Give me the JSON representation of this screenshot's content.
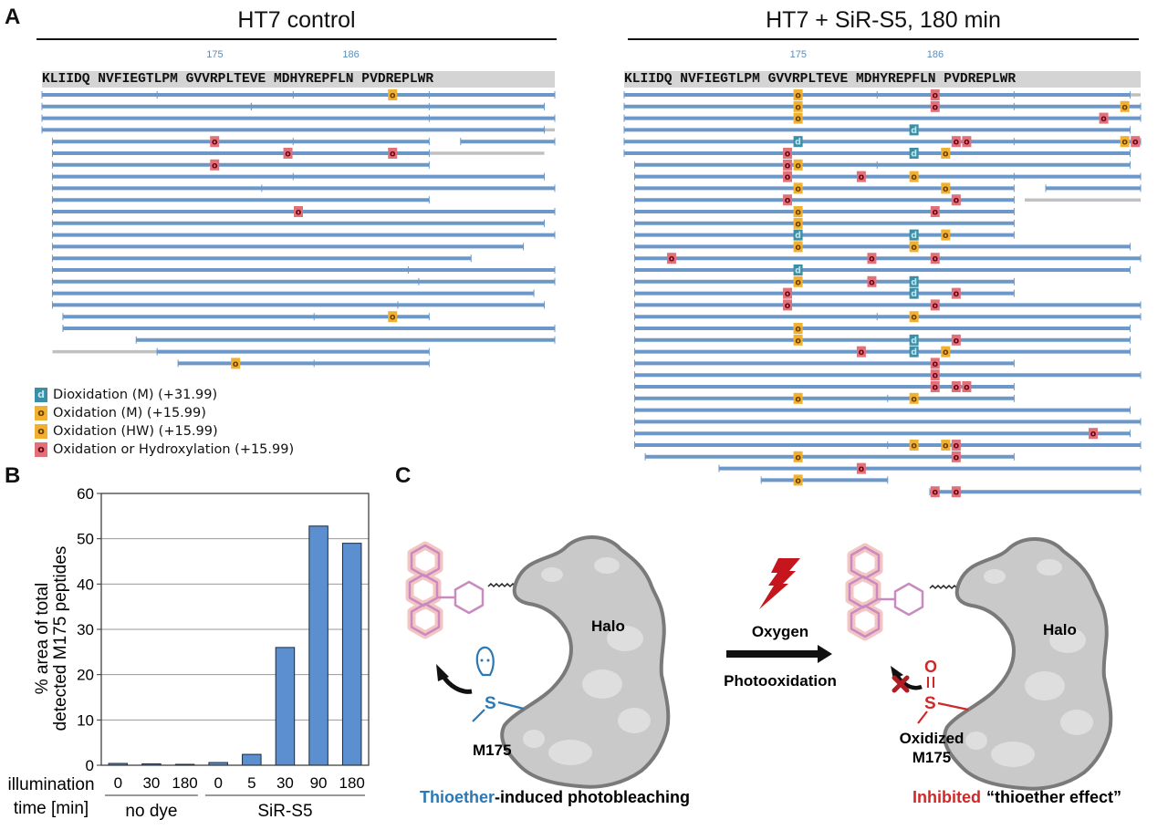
{
  "figure": {
    "panel_letters": {
      "a": "A",
      "b": "B",
      "c": "C"
    }
  },
  "sequence": {
    "text": "KLIIDQ NVFIEGTLPM GVVRPLTEVE MDHYREPFLN PVDREPLWR",
    "first_residue_number": 160,
    "position_labels": [
      {
        "residue": 175,
        "label": "175"
      },
      {
        "residue": 186,
        "label": "186"
      }
    ]
  },
  "colors": {
    "peptide": "#6b98c8",
    "unmatched": "#c0c0c0",
    "dioxidation_M": "#3a8ea6",
    "oxidation_M": "#f0b030",
    "oxidation_HW": "#f0b030",
    "oxidation_hydroxylation": "#e0707a",
    "bar_fill": "#5b8fcf",
    "thioether_blue": "#2a78b5",
    "inhibited_red": "#d02828",
    "dye_pink": "#d58ab8",
    "halo_gray": "#c8c8c8"
  },
  "legend": [
    {
      "type": "d",
      "color_key": "dioxidation_M",
      "label": "Dioxidation (M) (+31.99)"
    },
    {
      "type": "o",
      "color_key": "oxidation_M",
      "label": "Oxidation (M) (+15.99)"
    },
    {
      "type": "o",
      "color_key": "oxidation_HW",
      "label": "Oxidation (HW) (+15.99)"
    },
    {
      "type": "o",
      "color_key": "oxidation_hydroxylation",
      "label": "Oxidation or Hydroxylation (+15.99)"
    }
  ],
  "coverage_maps": [
    {
      "title": "HT7 control",
      "peptides": [
        {
          "start": 160,
          "end": 204,
          "ticks": [
            169,
            181,
            193
          ],
          "mods": [
            {
              "res": 190,
              "type": "o",
              "kind": "oxM"
            }
          ]
        },
        {
          "start": 160,
          "end": 177,
          "ticks": [],
          "mods": []
        },
        {
          "start": 178,
          "end": 203,
          "row": 1,
          "ticks": [
            193
          ],
          "mods": []
        },
        {
          "start": 160,
          "end": 204,
          "ticks": [
            193
          ],
          "mods": []
        },
        {
          "start": 160,
          "end": 203,
          "ticks": [],
          "grey": [
            203,
            204
          ],
          "mods": []
        },
        {
          "start": 161,
          "end": 193,
          "ticks": [
            181
          ],
          "mods": [
            {
              "res": 175,
              "type": "o",
              "kind": "oh"
            }
          ]
        },
        {
          "start": 196,
          "end": 204,
          "row": 4,
          "ticks": [],
          "mods": []
        },
        {
          "start": 161,
          "end": 193,
          "ticks": [],
          "grey": [
            193,
            203
          ],
          "mods": [
            {
              "res": 181,
              "type": "o",
              "kind": "oh"
            },
            {
              "res": 190,
              "type": "o",
              "kind": "oh"
            }
          ]
        },
        {
          "start": 161,
          "end": 193,
          "ticks": [],
          "mods": [
            {
              "res": 175,
              "type": "o",
              "kind": "oh"
            }
          ]
        },
        {
          "start": 161,
          "end": 203,
          "ticks": [
            181
          ],
          "mods": []
        },
        {
          "start": 161,
          "end": 204,
          "ticks": [
            178
          ],
          "mods": []
        },
        {
          "start": 161,
          "end": 193,
          "ticks": [],
          "mods": []
        },
        {
          "start": 161,
          "end": 204,
          "ticks": [],
          "mods": [
            {
              "res": 182,
              "type": "o",
              "kind": "oh"
            }
          ]
        },
        {
          "start": 161,
          "end": 203,
          "ticks": [],
          "mods": []
        },
        {
          "start": 161,
          "end": 204,
          "ticks": [],
          "mods": []
        },
        {
          "start": 161,
          "end": 201,
          "ticks": [],
          "mods": []
        },
        {
          "start": 161,
          "end": 196,
          "ticks": [],
          "mods": []
        },
        {
          "start": 161,
          "end": 204,
          "ticks": [
            191
          ],
          "mods": []
        },
        {
          "start": 161,
          "end": 204,
          "ticks": [
            192
          ],
          "mods": []
        },
        {
          "start": 161,
          "end": 202,
          "ticks": [],
          "mods": []
        },
        {
          "start": 161,
          "end": 203,
          "ticks": [
            190
          ],
          "mods": []
        },
        {
          "start": 162,
          "end": 193,
          "ticks": [
            183
          ],
          "mods": [
            {
              "res": 190,
              "type": "o",
              "kind": "oxM"
            }
          ]
        },
        {
          "start": 162,
          "end": 204,
          "ticks": [],
          "mods": []
        },
        {
          "start": 168,
          "end": 204,
          "ticks": [],
          "mods": []
        },
        {
          "start": 170,
          "end": 193,
          "ticks": [],
          "grey": [
            161,
            170
          ],
          "mods": []
        },
        {
          "start": 172,
          "end": 193,
          "ticks": [
            183
          ],
          "mods": [
            {
              "res": 176,
              "type": "o",
              "kind": "oxM"
            }
          ]
        }
      ]
    },
    {
      "title": "HT7 + SiR-S5, 180 min",
      "peptides": [
        {
          "start": 160,
          "end": 203,
          "ticks": [
            181,
            193
          ],
          "grey": [
            203,
            204
          ],
          "mods": [
            {
              "res": 175,
              "type": "o",
              "kind": "oxM"
            },
            {
              "res": 186,
              "type": "o",
              "kind": "oh"
            }
          ]
        },
        {
          "start": 160,
          "end": 204,
          "ticks": [
            193
          ],
          "mods": [
            {
              "res": 175,
              "type": "o",
              "kind": "oxM"
            },
            {
              "res": 186,
              "type": "o",
              "kind": "oh"
            },
            {
              "res": 203,
              "type": "o",
              "kind": "oxHW"
            }
          ]
        },
        {
          "start": 160,
          "end": 204,
          "ticks": [],
          "mods": [
            {
              "res": 175,
              "type": "o",
              "kind": "oxM"
            },
            {
              "res": 201,
              "type": "o",
              "kind": "oh"
            }
          ]
        },
        {
          "start": 160,
          "end": 203,
          "ticks": [],
          "mods": [
            {
              "res": 185,
              "type": "d",
              "kind": "diox"
            }
          ]
        },
        {
          "start": 160,
          "end": 204,
          "ticks": [
            193
          ],
          "mods": [
            {
              "res": 175,
              "type": "d",
              "kind": "diox"
            },
            {
              "res": 188,
              "type": "o",
              "kind": "oh"
            },
            {
              "res": 189,
              "type": "o",
              "kind": "oh"
            },
            {
              "res": 203,
              "type": "o",
              "kind": "oxHW"
            },
            {
              "res": 204,
              "type": "o",
              "kind": "oh"
            }
          ]
        },
        {
          "start": 160,
          "end": 203,
          "ticks": [],
          "mods": [
            {
              "res": 174,
              "type": "o",
              "kind": "oh"
            },
            {
              "res": 185,
              "type": "d",
              "kind": "diox"
            },
            {
              "res": 187,
              "type": "o",
              "kind": "oxM"
            }
          ]
        },
        {
          "start": 161,
          "end": 203,
          "ticks": [
            181
          ],
          "mods": [
            {
              "res": 174,
              "type": "o",
              "kind": "oh"
            },
            {
              "res": 175,
              "type": "o",
              "kind": "oxM"
            }
          ]
        },
        {
          "start": 161,
          "end": 204,
          "ticks": [
            193
          ],
          "mods": [
            {
              "res": 174,
              "type": "o",
              "kind": "oh"
            },
            {
              "res": 180,
              "type": "o",
              "kind": "oh"
            },
            {
              "res": 185,
              "type": "o",
              "kind": "oxM"
            }
          ]
        },
        {
          "start": 161,
          "end": 193,
          "ticks": [],
          "mods": [
            {
              "res": 175,
              "type": "o",
              "kind": "oxM"
            },
            {
              "res": 187,
              "type": "o",
              "kind": "oxM"
            }
          ]
        },
        {
          "start": 196,
          "end": 204,
          "row": 8,
          "ticks": [],
          "mods": []
        },
        {
          "start": 161,
          "end": 193,
          "ticks": [],
          "grey": [
            195,
            204
          ],
          "mods": [
            {
              "res": 174,
              "type": "o",
              "kind": "oh"
            },
            {
              "res": 188,
              "type": "o",
              "kind": "oh"
            }
          ]
        },
        {
          "start": 161,
          "end": 193,
          "ticks": [],
          "mods": [
            {
              "res": 175,
              "type": "o",
              "kind": "oxM"
            },
            {
              "res": 186,
              "type": "o",
              "kind": "oh"
            }
          ]
        },
        {
          "start": 161,
          "end": 193,
          "ticks": [],
          "mods": [
            {
              "res": 175,
              "type": "o",
              "kind": "oxM"
            }
          ]
        },
        {
          "start": 161,
          "end": 193,
          "ticks": [],
          "mods": [
            {
              "res": 175,
              "type": "d",
              "kind": "diox"
            },
            {
              "res": 185,
              "type": "d",
              "kind": "diox"
            },
            {
              "res": 187,
              "type": "o",
              "kind": "oxM"
            }
          ]
        },
        {
          "start": 161,
          "end": 203,
          "ticks": [],
          "mods": [
            {
              "res": 175,
              "type": "o",
              "kind": "oxM"
            },
            {
              "res": 185,
              "type": "o",
              "kind": "oxM"
            }
          ]
        },
        {
          "start": 161,
          "end": 204,
          "ticks": [],
          "mods": [
            {
              "res": 164,
              "type": "o",
              "kind": "oh"
            },
            {
              "res": 181,
              "type": "o",
              "kind": "oh"
            },
            {
              "res": 186,
              "type": "o",
              "kind": "oh"
            }
          ]
        },
        {
          "start": 161,
          "end": 203,
          "ticks": [],
          "mods": [
            {
              "res": 175,
              "type": "d",
              "kind": "diox"
            }
          ]
        },
        {
          "start": 161,
          "end": 193,
          "ticks": [],
          "mods": [
            {
              "res": 175,
              "type": "o",
              "kind": "oxM"
            },
            {
              "res": 181,
              "type": "o",
              "kind": "oh"
            },
            {
              "res": 185,
              "type": "d",
              "kind": "diox"
            }
          ]
        },
        {
          "start": 161,
          "end": 193,
          "ticks": [],
          "mods": [
            {
              "res": 174,
              "type": "o",
              "kind": "oh"
            },
            {
              "res": 185,
              "type": "d",
              "kind": "diox"
            },
            {
              "res": 188,
              "type": "o",
              "kind": "oh"
            }
          ]
        },
        {
          "start": 161,
          "end": 204,
          "ticks": [],
          "mods": [
            {
              "res": 174,
              "type": "o",
              "kind": "oh"
            },
            {
              "res": 186,
              "type": "o",
              "kind": "oh"
            }
          ]
        },
        {
          "start": 161,
          "end": 204,
          "ticks": [
            181
          ],
          "mods": [
            {
              "res": 185,
              "type": "o",
              "kind": "oxM"
            }
          ]
        },
        {
          "start": 161,
          "end": 203,
          "ticks": [],
          "mods": [
            {
              "res": 175,
              "type": "o",
              "kind": "oxM"
            }
          ]
        },
        {
          "start": 161,
          "end": 203,
          "ticks": [],
          "mods": [
            {
              "res": 175,
              "type": "o",
              "kind": "oxM"
            },
            {
              "res": 185,
              "type": "d",
              "kind": "diox"
            },
            {
              "res": 188,
              "type": "o",
              "kind": "oh"
            }
          ]
        },
        {
          "start": 161,
          "end": 203,
          "ticks": [],
          "mods": [
            {
              "res": 180,
              "type": "o",
              "kind": "oh"
            },
            {
              "res": 185,
              "type": "d",
              "kind": "diox"
            },
            {
              "res": 187,
              "type": "o",
              "kind": "oxM"
            }
          ]
        },
        {
          "start": 161,
          "end": 193,
          "ticks": [],
          "mods": [
            {
              "res": 186,
              "type": "o",
              "kind": "oh"
            }
          ]
        },
        {
          "start": 161,
          "end": 204,
          "ticks": [],
          "mods": [
            {
              "res": 186,
              "type": "o",
              "kind": "oh"
            }
          ]
        },
        {
          "start": 161,
          "end": 193,
          "ticks": [],
          "mods": [
            {
              "res": 186,
              "type": "o",
              "kind": "oh"
            },
            {
              "res": 188,
              "type": "o",
              "kind": "oh"
            },
            {
              "res": 189,
              "type": "o",
              "kind": "oh"
            }
          ]
        },
        {
          "start": 161,
          "end": 193,
          "ticks": [
            182
          ],
          "mods": [
            {
              "res": 175,
              "type": "o",
              "kind": "oxM"
            },
            {
              "res": 185,
              "type": "o",
              "kind": "oxM"
            }
          ]
        },
        {
          "start": 161,
          "end": 203,
          "ticks": [],
          "mods": []
        },
        {
          "start": 161,
          "end": 204,
          "ticks": [],
          "mods": []
        },
        {
          "start": 161,
          "end": 203,
          "ticks": [],
          "mods": [
            {
              "res": 200,
              "type": "o",
              "kind": "oh"
            }
          ]
        },
        {
          "start": 161,
          "end": 204,
          "ticks": [
            182
          ],
          "mods": [
            {
              "res": 185,
              "type": "o",
              "kind": "oxM"
            },
            {
              "res": 187,
              "type": "o",
              "kind": "oxM"
            },
            {
              "res": 188,
              "type": "o",
              "kind": "oh"
            }
          ]
        },
        {
          "start": 162,
          "end": 193,
          "ticks": [],
          "mods": [
            {
              "res": 175,
              "type": "o",
              "kind": "oxM"
            },
            {
              "res": 188,
              "type": "o",
              "kind": "oh"
            }
          ]
        },
        {
          "start": 168,
          "end": 204,
          "ticks": [],
          "mods": [
            {
              "res": 180,
              "type": "o",
              "kind": "oh"
            }
          ]
        },
        {
          "start": 172,
          "end": 182,
          "ticks": [],
          "mods": [
            {
              "res": 175,
              "type": "o",
              "kind": "oxM"
            }
          ]
        },
        {
          "start": 186,
          "end": 204,
          "row": 34,
          "ticks": [],
          "mods": [
            {
              "res": 186,
              "type": "o",
              "kind": "oh"
            },
            {
              "res": 188,
              "type": "o",
              "kind": "oh"
            }
          ]
        }
      ]
    }
  ],
  "chart_data": {
    "type": "bar",
    "title": "",
    "ylabel_lines": [
      "% area of total",
      "detected M175 peptides"
    ],
    "xlabel_lines": [
      "illumination",
      "time [min]"
    ],
    "categories": [
      "0",
      "30",
      "180",
      "0",
      "5",
      "30",
      "90",
      "180"
    ],
    "groups": [
      {
        "label": "no dye",
        "indices": [
          0,
          1,
          2
        ]
      },
      {
        "label": "SiR-S5",
        "indices": [
          3,
          4,
          5,
          6,
          7
        ]
      }
    ],
    "values": [
      0.4,
      0.3,
      0.2,
      0.6,
      2.4,
      26.0,
      52.8,
      49.0
    ],
    "ylim": [
      0,
      60
    ],
    "yticks": [
      0,
      10,
      20,
      30,
      40,
      50,
      60
    ],
    "grid": true,
    "legend": "none"
  },
  "scheme": {
    "left": {
      "protein_label": "Halo",
      "residue_label": "M175",
      "atom_label": "S",
      "caption_colored": "Thioether",
      "caption_rest": "-induced photobleaching"
    },
    "middle": {
      "above_arrow": "Oxygen",
      "below_arrow": "Photooxidation"
    },
    "right": {
      "protein_label": "Halo",
      "residue_label_line1": "Oxidized",
      "residue_label_line2": "M175",
      "atom_label": "S",
      "oxygen_label": "O",
      "caption_colored": "Inhibited",
      "caption_rest": "“thioether effect”"
    }
  }
}
